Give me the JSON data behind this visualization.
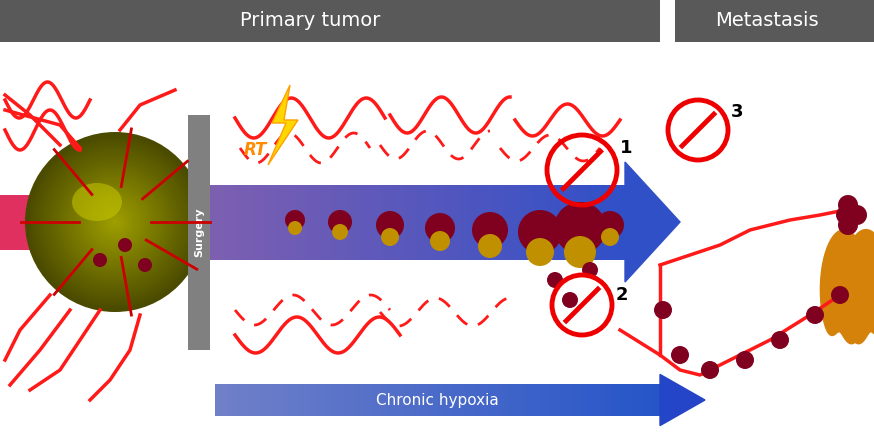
{
  "bg_color": "#ffffff",
  "header_bg": "#595959",
  "primary_tumor_label": "Primary tumor",
  "metastasis_label": "Metastasis",
  "chronic_hypoxia_label": "Chronic hypoxia",
  "rt_label": "RT",
  "surgery_label": "Surgery",
  "label1": "1",
  "label2": "2",
  "label3": "3",
  "tumor_color_outer": "#4a4a00",
  "tumor_color_inner": "#8a8a00",
  "tumor_highlight": "#d4d400",
  "blood_vessel_color": "#ff1a1a",
  "arrow_color_left": "#8060b0",
  "arrow_color_right": "#3050c8",
  "chronic_arrow_color": "#4060c8",
  "no_sign_color": "#ff0000",
  "cell_dark": "#800020",
  "cell_light": "#c09000",
  "lung_color": "#d4820a",
  "surgery_color": "#808080",
  "blood_band_color": "#e03060"
}
